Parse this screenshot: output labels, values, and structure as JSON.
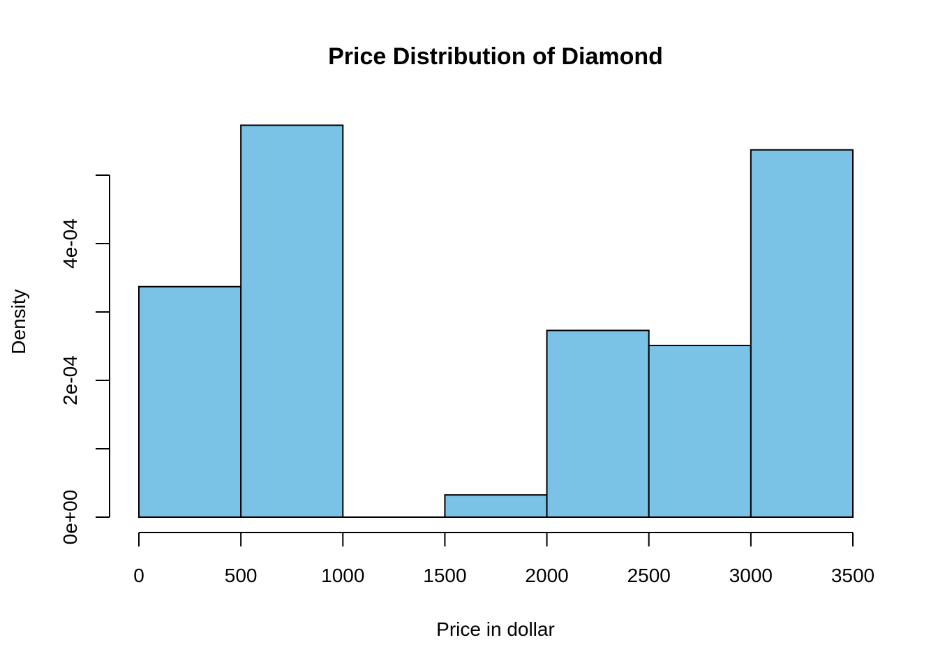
{
  "chart_data": {
    "type": "bar",
    "title": "Price Distribution of Diamond",
    "xlabel": "Price in dollar",
    "ylabel": "Density",
    "bins": [
      {
        "start": 0,
        "end": 500,
        "density": 0.000337
      },
      {
        "start": 500,
        "end": 1000,
        "density": 0.000573
      },
      {
        "start": 1000,
        "end": 1500,
        "density": 0.0
      },
      {
        "start": 1500,
        "end": 2000,
        "density": 3.25e-05
      },
      {
        "start": 2000,
        "end": 2500,
        "density": 0.000273
      },
      {
        "start": 2500,
        "end": 3000,
        "density": 0.000251
      },
      {
        "start": 3000,
        "end": 3500,
        "density": 0.000537
      }
    ],
    "x_ticks": [
      0,
      500,
      1000,
      1500,
      2000,
      2500,
      3000,
      3500
    ],
    "x_tick_labels": [
      "0",
      "500",
      "1000",
      "1500",
      "2000",
      "2500",
      "3000",
      "3500"
    ],
    "y_ticks": [
      0,
      0.0001,
      0.0002,
      0.0003,
      0.0004,
      0.0005
    ],
    "y_tick_labels": [
      "0e+00",
      "",
      "2e-04",
      "",
      "4e-04",
      ""
    ],
    "xlim": [
      0,
      3500
    ],
    "ylim": [
      0,
      0.0005
    ],
    "grid": false,
    "colors": {
      "bar_fill": "#7AC3E6",
      "bar_stroke": "#000000",
      "axis": "#000000"
    }
  }
}
